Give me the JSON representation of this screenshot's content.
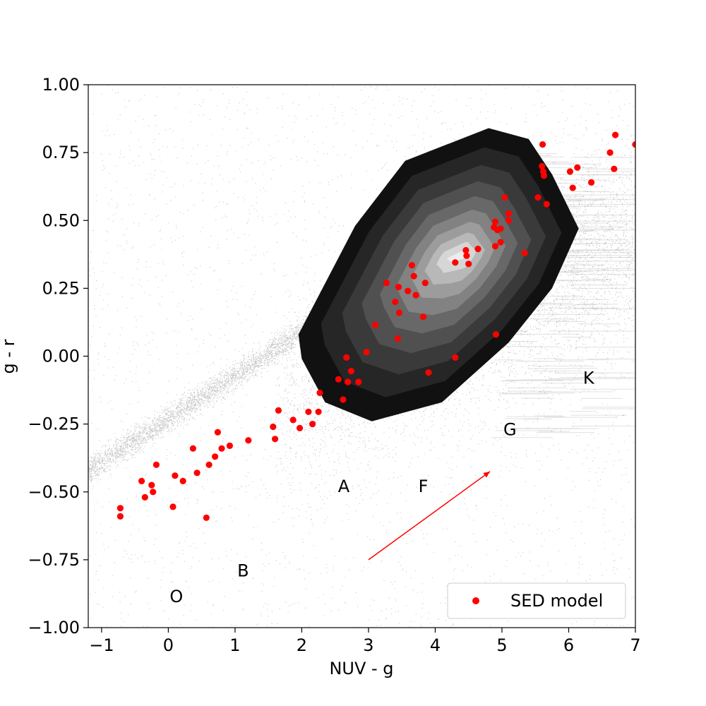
{
  "chart_data": {
    "type": "scatter",
    "title": "",
    "xlabel": "NUV - g",
    "ylabel": "g - r",
    "xlim": [
      -1.2,
      7
    ],
    "ylim": [
      -1.0,
      1.0
    ],
    "x_ticks": [
      -1,
      0,
      1,
      2,
      3,
      4,
      5,
      6,
      7
    ],
    "x_tick_labels": [
      "−1",
      "0",
      "1",
      "2",
      "3",
      "4",
      "5",
      "6",
      "7"
    ],
    "y_ticks": [
      -1.0,
      -0.75,
      -0.5,
      -0.25,
      0.0,
      0.25,
      0.5,
      0.75,
      1.0
    ],
    "y_tick_labels": [
      "−1.00",
      "−0.75",
      "−0.50",
      "−0.25",
      "0.00",
      "0.25",
      "0.50",
      "0.75",
      "1.00"
    ],
    "grid": false,
    "legend": {
      "placement": "lower-right",
      "entries": [
        {
          "label": "SED model",
          "color": "#ff0000",
          "marker": "circle"
        }
      ]
    },
    "background_density": {
      "color": "#000000",
      "contour_levels": 9,
      "contour_colors": [
        "#111111",
        "#262626",
        "#3a3a3a",
        "#505050",
        "#686868",
        "#828282",
        "#9c9c9c",
        "#b8b8b8",
        "#d6d6d6",
        "#ececec"
      ]
    },
    "series": [
      {
        "name": "SED model",
        "color": "#ff0000",
        "points": [
          [
            -0.72,
            -0.56
          ],
          [
            -0.72,
            -0.59
          ],
          [
            -0.4,
            -0.46
          ],
          [
            -0.35,
            -0.52
          ],
          [
            -0.25,
            -0.475
          ],
          [
            -0.23,
            -0.5
          ],
          [
            -0.18,
            -0.4
          ],
          [
            0.07,
            -0.555
          ],
          [
            0.1,
            -0.44
          ],
          [
            0.22,
            -0.46
          ],
          [
            0.37,
            -0.34
          ],
          [
            0.43,
            -0.43
          ],
          [
            0.57,
            -0.595
          ],
          [
            0.61,
            -0.4
          ],
          [
            0.7,
            -0.37
          ],
          [
            0.74,
            -0.28
          ],
          [
            0.8,
            -0.34
          ],
          [
            0.92,
            -0.33
          ],
          [
            1.2,
            -0.31
          ],
          [
            1.57,
            -0.26
          ],
          [
            1.6,
            -0.305
          ],
          [
            1.65,
            -0.2
          ],
          [
            1.87,
            -0.235
          ],
          [
            1.97,
            -0.265
          ],
          [
            2.1,
            -0.205
          ],
          [
            2.16,
            -0.25
          ],
          [
            2.25,
            -0.205
          ],
          [
            2.27,
            -0.135
          ],
          [
            2.55,
            -0.085
          ],
          [
            2.62,
            -0.16
          ],
          [
            2.67,
            -0.005
          ],
          [
            2.69,
            -0.095
          ],
          [
            2.74,
            -0.055
          ],
          [
            2.85,
            -0.095
          ],
          [
            2.97,
            0.015
          ],
          [
            3.1,
            0.115
          ],
          [
            3.27,
            0.27
          ],
          [
            3.4,
            0.2
          ],
          [
            3.44,
            0.065
          ],
          [
            3.45,
            0.255
          ],
          [
            3.46,
            0.16
          ],
          [
            3.59,
            0.24
          ],
          [
            3.65,
            0.335
          ],
          [
            3.68,
            0.295
          ],
          [
            3.71,
            0.225
          ],
          [
            3.82,
            0.145
          ],
          [
            3.85,
            0.27
          ],
          [
            3.9,
            -0.06
          ],
          [
            4.3,
            0.345
          ],
          [
            4.3,
            -0.005
          ],
          [
            4.46,
            0.39
          ],
          [
            4.47,
            0.37
          ],
          [
            4.5,
            0.34
          ],
          [
            4.64,
            0.395
          ],
          [
            4.88,
            0.475
          ],
          [
            4.9,
            0.495
          ],
          [
            4.9,
            0.405
          ],
          [
            4.91,
            0.08
          ],
          [
            4.93,
            0.465
          ],
          [
            4.98,
            0.47
          ],
          [
            4.98,
            0.42
          ],
          [
            5.04,
            0.585
          ],
          [
            5.1,
            0.525
          ],
          [
            5.1,
            0.5
          ],
          [
            5.34,
            0.38
          ],
          [
            5.54,
            0.585
          ],
          [
            5.6,
            0.7
          ],
          [
            5.61,
            0.78
          ],
          [
            5.62,
            0.68
          ],
          [
            5.63,
            0.665
          ],
          [
            5.67,
            0.56
          ],
          [
            6.02,
            0.68
          ],
          [
            6.06,
            0.62
          ],
          [
            6.13,
            0.695
          ],
          [
            6.34,
            0.64
          ],
          [
            6.62,
            0.75
          ],
          [
            6.68,
            0.69
          ],
          [
            6.7,
            0.815
          ],
          [
            7.0,
            0.78
          ]
        ]
      }
    ],
    "arrow": {
      "from": [
        3.0,
        -0.75
      ],
      "to": [
        4.82,
        -0.425
      ],
      "color": "#ff0000"
    },
    "class_labels": [
      {
        "text": "O",
        "x": 0.12,
        "y": -0.885
      },
      {
        "text": "B",
        "x": 1.12,
        "y": -0.79
      },
      {
        "text": "A",
        "x": 2.63,
        "y": -0.48
      },
      {
        "text": "F",
        "x": 3.82,
        "y": -0.48
      },
      {
        "text": "G",
        "x": 5.12,
        "y": -0.27
      },
      {
        "text": "K",
        "x": 6.3,
        "y": -0.08
      }
    ]
  }
}
